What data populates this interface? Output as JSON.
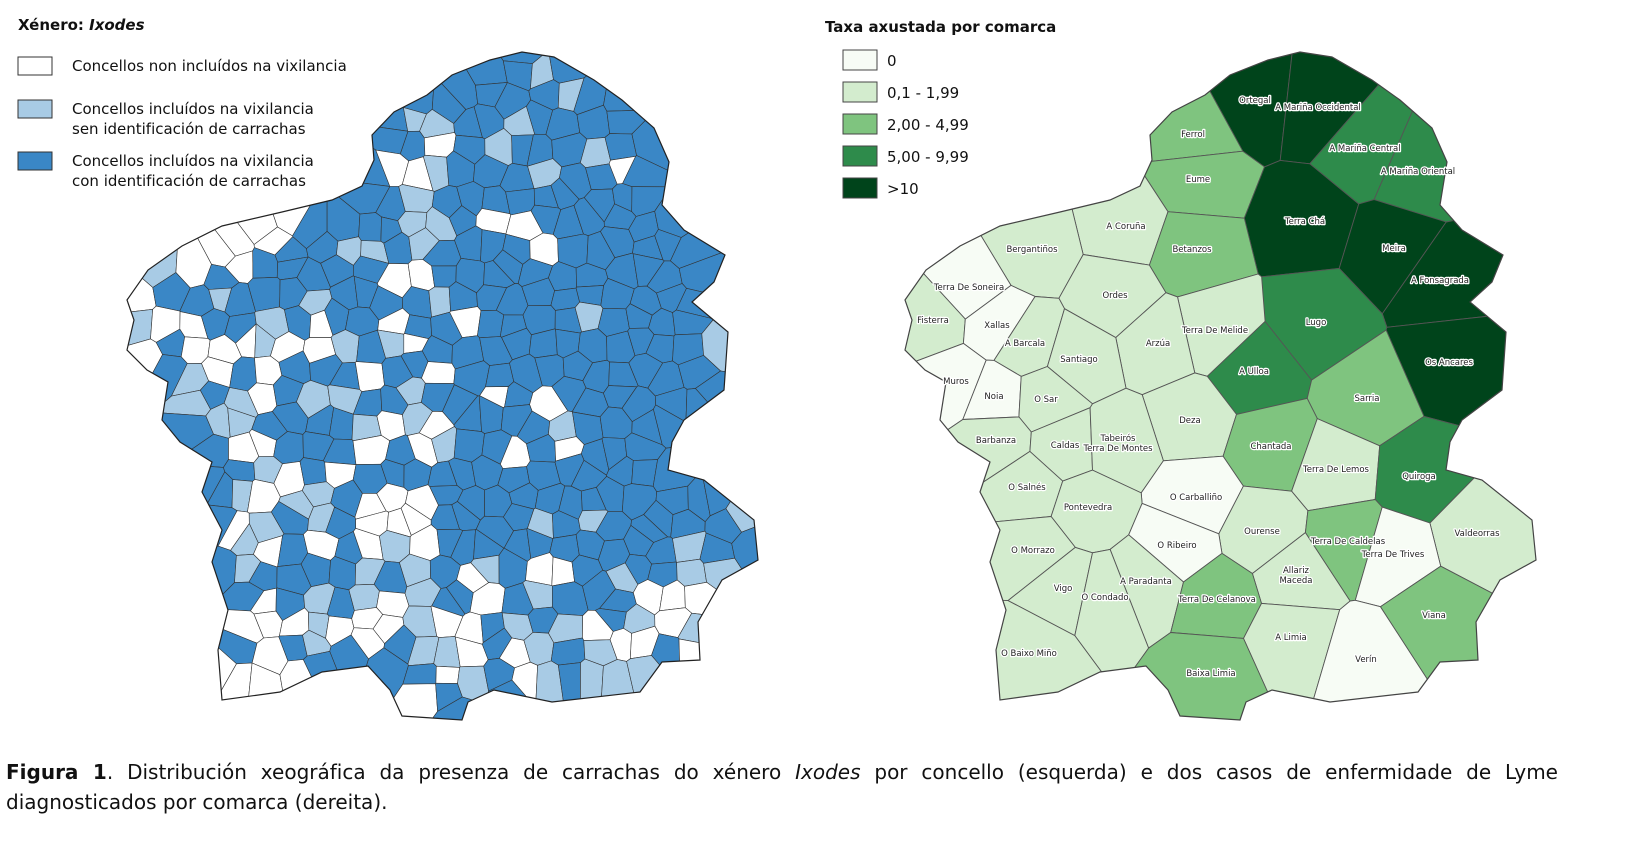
{
  "left_map": {
    "legend": {
      "title_prefix": "Xénero:",
      "title_genus": "Ixodes",
      "items": [
        {
          "lines": [
            "Concellos non incluídos na vixilancia"
          ],
          "color": "#ffffff"
        },
        {
          "lines": [
            "Concellos incluídos na vixilancia",
            "sen identificación de carrachas"
          ],
          "color": "#a8cbe5"
        },
        {
          "lines": [
            "Concellos incluídos na vixilancia",
            "con identificación de carrachas"
          ],
          "color": "#3a87c6"
        }
      ]
    }
  },
  "right_map": {
    "legend": {
      "title": "Taxa axustada por comarca",
      "items": [
        {
          "label": "0",
          "color": "#f7fcf5"
        },
        {
          "label": "0,1 - 1,99",
          "color": "#d3ecce"
        },
        {
          "label": "2,00 - 4,99",
          "color": "#7fc47f"
        },
        {
          "label": "5,00 - 9,99",
          "color": "#2e8b4b"
        },
        {
          "label": ">10",
          "color": "#00441b"
        }
      ]
    },
    "comarcas": [
      {
        "name": "Ortegal",
        "fill": "#00441b"
      },
      {
        "name": "A Mariña Occidental",
        "fill": "#00441b"
      },
      {
        "name": "Ferrol",
        "fill": "#7fc47f"
      },
      {
        "name": "A Mariña Central",
        "fill": "#2e8b4b"
      },
      {
        "name": "A Mariña Oriental",
        "fill": "#2e8b4b"
      },
      {
        "name": "Eume",
        "fill": "#7fc47f"
      },
      {
        "name": "A Coruña",
        "fill": "#d3ecce"
      },
      {
        "name": "Terra Chá",
        "fill": "#00441b"
      },
      {
        "name": "Bergantiños",
        "fill": "#d3ecce"
      },
      {
        "name": "Betanzos",
        "fill": "#7fc47f"
      },
      {
        "name": "Meira",
        "fill": "#00441b"
      },
      {
        "name": "A Fonsagrada",
        "fill": "#00441b"
      },
      {
        "name": "Terra De Soneira",
        "fill": "#f7fcf5"
      },
      {
        "name": "Ordes",
        "fill": "#d3ecce"
      },
      {
        "name": "Fisterra",
        "fill": "#d3ecce"
      },
      {
        "name": "Xallas",
        "fill": "#f7fcf5"
      },
      {
        "name": "Lugo",
        "fill": "#2e8b4b"
      },
      {
        "name": "Terra De Melide",
        "fill": "#d3ecce"
      },
      {
        "name": "A Barcala",
        "fill": "#d3ecce"
      },
      {
        "name": "Arzúa",
        "fill": "#d3ecce"
      },
      {
        "name": "Santiago",
        "fill": "#d3ecce"
      },
      {
        "name": "Os Ancares",
        "fill": "#00441b"
      },
      {
        "name": "A Ulloa",
        "fill": "#2e8b4b"
      },
      {
        "name": "Muros",
        "fill": "#f7fcf5"
      },
      {
        "name": "Noia",
        "fill": "#f7fcf5"
      },
      {
        "name": "O Sar",
        "fill": "#d3ecce"
      },
      {
        "name": "Sarria",
        "fill": "#7fc47f"
      },
      {
        "name": "Deza",
        "fill": "#d3ecce"
      },
      {
        "name": "Barbanza",
        "fill": "#d3ecce"
      },
      {
        "name": "Caldas",
        "fill": "#d3ecce"
      },
      {
        "name": [
          "Tabeirós",
          "Terra De Montes"
        ],
        "fill": "#d3ecce"
      },
      {
        "name": "Chantada",
        "fill": "#7fc47f"
      },
      {
        "name": "Terra De Lemos",
        "fill": "#d3ecce"
      },
      {
        "name": "Quiroga",
        "fill": "#2e8b4b"
      },
      {
        "name": "O Salnés",
        "fill": "#d3ecce"
      },
      {
        "name": "O Carballiño",
        "fill": "#f7fcf5"
      },
      {
        "name": "Pontevedra",
        "fill": "#d3ecce"
      },
      {
        "name": "Ourense",
        "fill": "#d3ecce"
      },
      {
        "name": "Valdeorras",
        "fill": "#d3ecce"
      },
      {
        "name": "Terra De Caldelas",
        "fill": "#7fc47f"
      },
      {
        "name": "O Ribeiro",
        "fill": "#f7fcf5"
      },
      {
        "name": "O Morrazo",
        "fill": "#d3ecce"
      },
      {
        "name": "Terra De Trives",
        "fill": "#f7fcf5"
      },
      {
        "name": [
          "Allariz",
          "Maceda"
        ],
        "fill": "#d3ecce"
      },
      {
        "name": "A Paradanta",
        "fill": "#d3ecce"
      },
      {
        "name": "Vigo",
        "fill": "#d3ecce"
      },
      {
        "name": "O Condado",
        "fill": "#d3ecce"
      },
      {
        "name": "Terra De Celanova",
        "fill": "#7fc47f"
      },
      {
        "name": "Viana",
        "fill": "#7fc47f"
      },
      {
        "name": "A Limia",
        "fill": "#d3ecce"
      },
      {
        "name": "O Baixo Miño",
        "fill": "#d3ecce"
      },
      {
        "name": "Verín",
        "fill": "#f7fcf5"
      },
      {
        "name": "Baixa Limia",
        "fill": "#7fc47f"
      }
    ]
  },
  "caption": {
    "label": "Figura 1",
    "text_before": ". Distribución xeográfica da presenza de carrachas do xénero ",
    "genus": "Ixodes",
    "text_after": " por concello (esquerda) e dos casos de enfermidade de Lyme diagnosticados por comarca (dereita)."
  }
}
